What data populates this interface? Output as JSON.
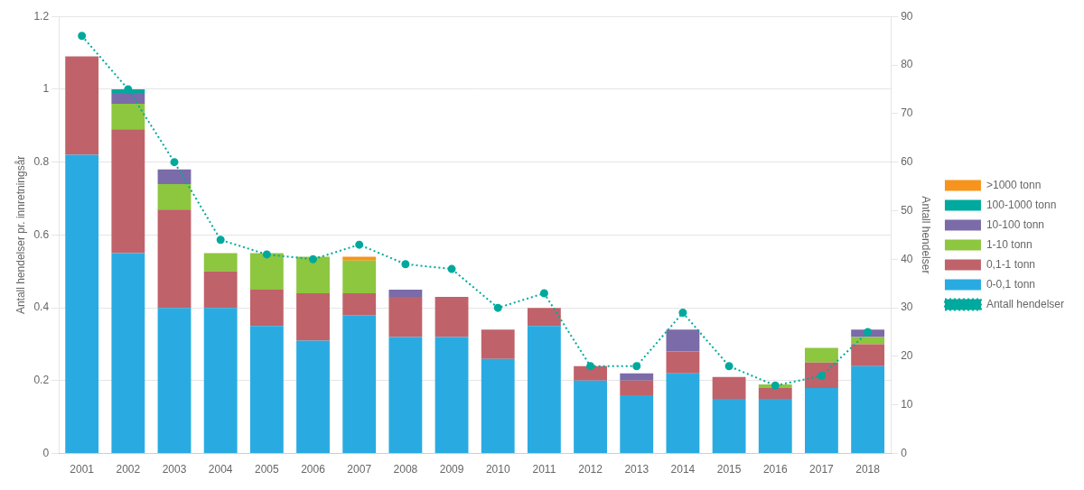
{
  "chart_data": {
    "type": "bar",
    "categories": [
      "2001",
      "2002",
      "2003",
      "2004",
      "2005",
      "2006",
      "2007",
      "2008",
      "2009",
      "2010",
      "2011",
      "2012",
      "2013",
      "2014",
      "2015",
      "2016",
      "2017",
      "2018"
    ],
    "series": [
      {
        "name": "0-0,1 tonn",
        "color": "#29ABE2",
        "values": [
          0.82,
          0.55,
          0.4,
          0.4,
          0.35,
          0.31,
          0.38,
          0.32,
          0.32,
          0.26,
          0.35,
          0.2,
          0.16,
          0.22,
          0.15,
          0.15,
          0.18,
          0.24
        ]
      },
      {
        "name": "0,1-1 tonn",
        "color": "#C0626A",
        "values": [
          0.27,
          0.34,
          0.27,
          0.1,
          0.1,
          0.13,
          0.06,
          0.11,
          0.11,
          0.08,
          0.05,
          0.04,
          0.04,
          0.06,
          0.06,
          0.03,
          0.07,
          0.06
        ]
      },
      {
        "name": "1-10 tonn",
        "color": "#8DC63F",
        "values": [
          0.0,
          0.07,
          0.07,
          0.05,
          0.1,
          0.1,
          0.09,
          0.0,
          0.0,
          0.0,
          0.0,
          0.0,
          0.0,
          0.0,
          0.0,
          0.01,
          0.04,
          0.02
        ]
      },
      {
        "name": "10-100 tonn",
        "color": "#7B6BA8",
        "values": [
          0.0,
          0.03,
          0.04,
          0.0,
          0.0,
          0.0,
          0.0,
          0.02,
          0.0,
          0.0,
          0.0,
          0.0,
          0.02,
          0.06,
          0.0,
          0.0,
          0.0,
          0.02
        ]
      },
      {
        "name": "100-1000 tonn",
        "color": "#00A99D",
        "values": [
          0.0,
          0.01,
          0.0,
          0.0,
          0.0,
          0.0,
          0.0,
          0.0,
          0.0,
          0.0,
          0.0,
          0.0,
          0.0,
          0.0,
          0.0,
          0.0,
          0.0,
          0.0
        ]
      },
      {
        "name": ">1000 tonn",
        "color": "#F7941D",
        "values": [
          0.0,
          0.0,
          0.0,
          0.0,
          0.0,
          0.0,
          0.01,
          0.0,
          0.0,
          0.0,
          0.0,
          0.0,
          0.0,
          0.0,
          0.0,
          0.0,
          0.0,
          0.0
        ]
      },
      {
        "name": "Antall hendelser",
        "type": "line",
        "axis": "y2",
        "color": "#00A99D",
        "line_style": "dotted",
        "marker": "circle",
        "values": [
          86,
          75,
          60,
          44,
          41,
          40,
          43,
          39,
          38,
          30,
          33,
          18,
          18,
          29,
          18,
          14,
          16,
          25
        ]
      }
    ],
    "ylabel": "Antall hendelser pr. innretningsår",
    "y2label": "Antall hendelser",
    "ylim": [
      0,
      1.2
    ],
    "yticks": [
      0,
      0.2,
      0.4,
      0.6,
      0.8,
      1.0,
      1.2
    ],
    "y2lim": [
      0,
      90
    ],
    "y2ticks": [
      0,
      10,
      20,
      30,
      40,
      50,
      60,
      70,
      80,
      90
    ],
    "stacked": true,
    "grid": true,
    "legend": "right"
  }
}
